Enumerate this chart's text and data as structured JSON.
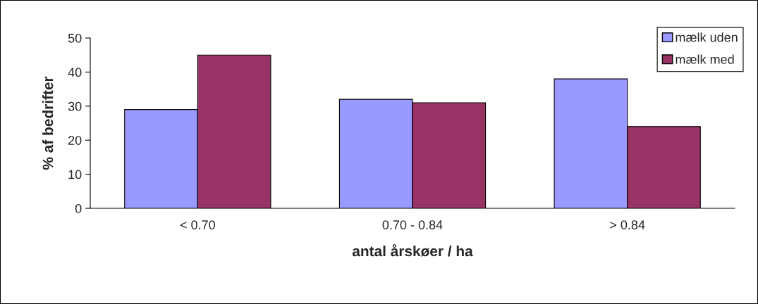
{
  "chart_data": {
    "type": "bar",
    "xlabel": "antal årskøer / ha",
    "ylabel": "% af bedrifter",
    "categories": [
      "< 0.70",
      "0.70 - 0.84",
      "> 0.84"
    ],
    "series": [
      {
        "name": "mælk uden",
        "color": "#9999ff",
        "values": [
          29,
          32,
          38
        ]
      },
      {
        "name": "mælk med",
        "color": "#993366",
        "values": [
          45,
          31,
          24
        ]
      }
    ],
    "ylim": [
      0,
      50
    ],
    "yticks": [
      0,
      10,
      20,
      30,
      40,
      50
    ],
    "grid": false,
    "legend": "top right"
  }
}
